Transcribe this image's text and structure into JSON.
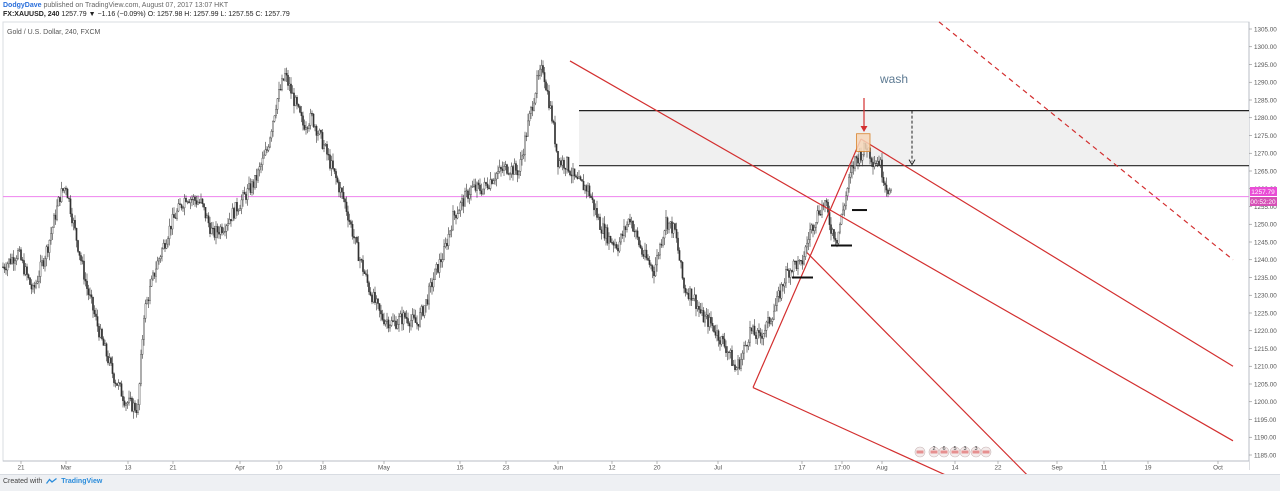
{
  "header": {
    "author": "DodgyDave",
    "published": "published on TradingView.com, August 07, 2017 13:07 HKT",
    "symbol": "FX:XAUUSD, 240",
    "last": "1257.79",
    "change": "▼ −1.16 (−0.09%)",
    "ohlc": "O: 1257.98  H: 1257.99  L: 1257.55  C: 1257.79"
  },
  "chart_data": {
    "type": "candlestick",
    "title": "Gold / U.S. Dollar, 240, FXCM",
    "annotation": "wash",
    "ylim": [
      1180,
      1307
    ],
    "y_ticks": [
      "1305.00",
      "1300.00",
      "1295.00",
      "1290.00",
      "1285.00",
      "1280.00",
      "1275.00",
      "1270.00",
      "1265.00",
      "1260.00",
      "1255.00",
      "1250.00",
      "1245.00",
      "1240.00",
      "1235.00",
      "1230.00",
      "1225.00",
      "1220.00",
      "1215.00",
      "1210.00",
      "1205.00",
      "1200.00",
      "1195.00",
      "1190.00",
      "1185.00"
    ],
    "x_ticks": [
      "21",
      "Mar",
      "13",
      "21",
      "Apr",
      "10",
      "18",
      "May",
      "15",
      "23",
      "Jun",
      "12",
      "20",
      "Jul",
      "17",
      "17:00",
      "Aug",
      "14",
      "22",
      "Sep",
      "11",
      "19",
      "Oct"
    ],
    "last_price_label": "1257.79",
    "countdown_label": "00:52:20",
    "event_flags": [
      "2",
      "6",
      "5",
      "3",
      "3"
    ],
    "price_path": [
      {
        "d": 0,
        "p": 1238
      },
      {
        "d": 5,
        "p": 1242
      },
      {
        "d": 10,
        "p": 1231
      },
      {
        "d": 15,
        "p": 1244
      },
      {
        "d": 19,
        "p": 1258
      },
      {
        "d": 21,
        "p": 1261
      },
      {
        "d": 24,
        "p": 1248
      },
      {
        "d": 28,
        "p": 1232
      },
      {
        "d": 33,
        "p": 1217
      },
      {
        "d": 37,
        "p": 1207
      },
      {
        "d": 41,
        "p": 1200
      },
      {
        "d": 45,
        "p": 1198
      },
      {
        "d": 47,
        "p": 1225
      },
      {
        "d": 51,
        "p": 1238
      },
      {
        "d": 56,
        "p": 1250
      },
      {
        "d": 61,
        "p": 1258
      },
      {
        "d": 66,
        "p": 1256
      },
      {
        "d": 70,
        "p": 1247
      },
      {
        "d": 74,
        "p": 1250
      },
      {
        "d": 79,
        "p": 1256
      },
      {
        "d": 84,
        "p": 1262
      },
      {
        "d": 88,
        "p": 1271
      },
      {
        "d": 91,
        "p": 1284
      },
      {
        "d": 94,
        "p": 1292
      },
      {
        "d": 97,
        "p": 1285
      },
      {
        "d": 100,
        "p": 1278
      },
      {
        "d": 103,
        "p": 1280
      },
      {
        "d": 107,
        "p": 1272
      },
      {
        "d": 110,
        "p": 1265
      },
      {
        "d": 114,
        "p": 1256
      },
      {
        "d": 118,
        "p": 1243
      },
      {
        "d": 122,
        "p": 1232
      },
      {
        "d": 126,
        "p": 1224
      },
      {
        "d": 130,
        "p": 1222
      },
      {
        "d": 134,
        "p": 1224
      },
      {
        "d": 138,
        "p": 1222
      },
      {
        "d": 141,
        "p": 1228
      },
      {
        "d": 144,
        "p": 1236
      },
      {
        "d": 147,
        "p": 1242
      },
      {
        "d": 150,
        "p": 1252
      },
      {
        "d": 153,
        "p": 1256
      },
      {
        "d": 156,
        "p": 1260
      },
      {
        "d": 160,
        "p": 1260
      },
      {
        "d": 164,
        "p": 1264
      },
      {
        "d": 168,
        "p": 1266
      },
      {
        "d": 172,
        "p": 1265
      },
      {
        "d": 175,
        "p": 1278
      },
      {
        "d": 178,
        "p": 1290
      },
      {
        "d": 180,
        "p": 1294
      },
      {
        "d": 183,
        "p": 1280
      },
      {
        "d": 185,
        "p": 1268
      },
      {
        "d": 188,
        "p": 1267
      },
      {
        "d": 191,
        "p": 1262
      },
      {
        "d": 195,
        "p": 1260
      },
      {
        "d": 199,
        "p": 1250
      },
      {
        "d": 202,
        "p": 1246
      },
      {
        "d": 205,
        "p": 1244
      },
      {
        "d": 209,
        "p": 1252
      },
      {
        "d": 213,
        "p": 1242
      },
      {
        "d": 217,
        "p": 1237
      },
      {
        "d": 221,
        "p": 1251
      },
      {
        "d": 224,
        "p": 1248
      },
      {
        "d": 227,
        "p": 1232
      },
      {
        "d": 230,
        "p": 1230
      },
      {
        "d": 233,
        "p": 1224
      },
      {
        "d": 236,
        "p": 1222
      },
      {
        "d": 239,
        "p": 1218
      },
      {
        "d": 242,
        "p": 1214
      },
      {
        "d": 244,
        "p": 1209
      },
      {
        "d": 246,
        "p": 1212
      },
      {
        "d": 249,
        "p": 1220
      },
      {
        "d": 252,
        "p": 1218
      },
      {
        "d": 255,
        "p": 1222
      },
      {
        "d": 258,
        "p": 1228
      },
      {
        "d": 261,
        "p": 1236
      },
      {
        "d": 264,
        "p": 1239
      },
      {
        "d": 266,
        "p": 1238
      },
      {
        "d": 269,
        "p": 1248
      },
      {
        "d": 272,
        "p": 1254
      },
      {
        "d": 274,
        "p": 1256
      },
      {
        "d": 276,
        "p": 1249
      },
      {
        "d": 278,
        "p": 1246
      },
      {
        "d": 280,
        "p": 1254
      },
      {
        "d": 282,
        "p": 1262
      },
      {
        "d": 284,
        "p": 1268
      },
      {
        "d": 286,
        "p": 1270
      },
      {
        "d": 288,
        "p": 1272
      },
      {
        "d": 290,
        "p": 1268
      },
      {
        "d": 292,
        "p": 1268
      },
      {
        "d": 294,
        "p": 1262
      },
      {
        "d": 296,
        "p": 1258
      }
    ],
    "zone": {
      "p_top": 1282,
      "p_bottom": 1266.5,
      "d_start": 192,
      "d_end": 410
    },
    "levels": [
      {
        "p": 1235,
        "d0": 263,
        "d1": 270
      },
      {
        "p": 1244,
        "d0": 276,
        "d1": 283
      },
      {
        "p": 1254,
        "d0": 283,
        "d1": 288
      }
    ],
    "impulse": [
      {
        "d": 250,
        "p": 1204
      },
      {
        "d": 286,
        "p": 1274
      }
    ],
    "channel_upper": [
      {
        "d": 189,
        "p": 1296
      },
      {
        "d": 410,
        "p": 1189
      }
    ],
    "channel_lower": [
      {
        "d": 250,
        "p": 1204
      },
      {
        "d": 336,
        "p": 1171
      }
    ],
    "channel_mid": [
      {
        "d": 268,
        "p": 1242
      },
      {
        "d": 343,
        "p": 1178
      }
    ],
    "fork_right": [
      {
        "d": 286,
        "p": 1274
      },
      {
        "d": 410,
        "p": 1210
      }
    ],
    "dashed_diag": [
      {
        "d": 312,
        "p": 1307
      },
      {
        "d": 410,
        "p": 1240
      }
    ],
    "dashed_arrow": {
      "d": 303,
      "p0": 1282,
      "p1": 1266.5
    },
    "wash_arrow": {
      "d": 287,
      "p0": 1285,
      "p1": 1276
    },
    "wash_box": {
      "d0": 284.5,
      "d1": 289,
      "p0": 1275.5,
      "p1": 1270.5
    },
    "last_price": 1257.79
  },
  "footer": {
    "created_with": "Created with",
    "brand": "TradingView"
  },
  "colors": {
    "red": "#d32f2f",
    "candles": "#333333",
    "zone_fill": "#f0f0f0",
    "last_price_line": "#ee82ee",
    "last_price_bg": "#e94ed6",
    "countdown_bg": "#d64fb6"
  }
}
